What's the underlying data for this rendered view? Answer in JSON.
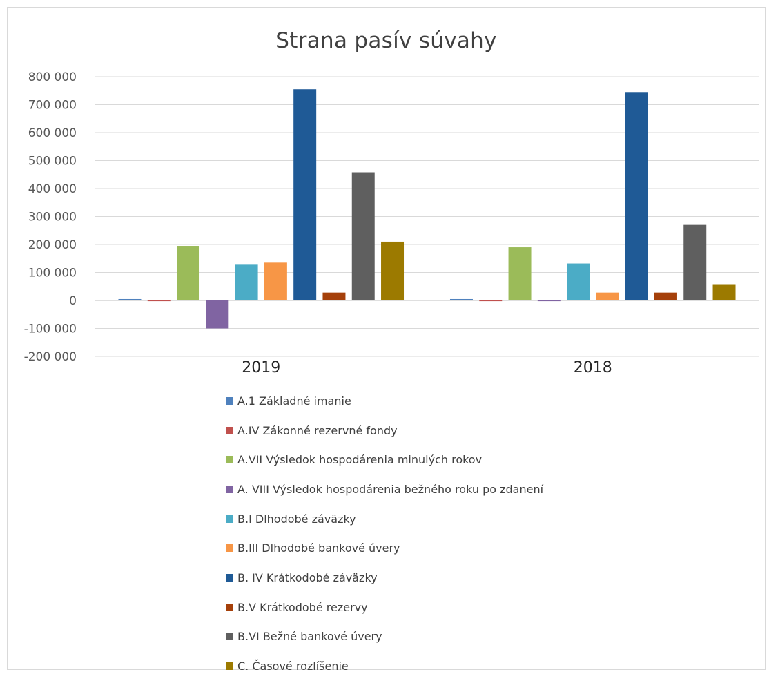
{
  "chart_data": {
    "type": "bar",
    "title": "Strana pasív súvahy",
    "categories": [
      "2019",
      "2018"
    ],
    "ylim": [
      -200000,
      800000
    ],
    "yticks": [
      800000,
      700000,
      600000,
      500000,
      400000,
      300000,
      200000,
      100000,
      0,
      -100000,
      -200000
    ],
    "ytick_labels": [
      "800 000",
      "700 000",
      "600 000",
      "500 000",
      "400 000",
      "300 000",
      "200 000",
      "100 000",
      "0",
      "-100 000",
      "-200 000"
    ],
    "grid": true,
    "legend_position": "bottom",
    "series": [
      {
        "name": "A.1 Základné imanie",
        "color": "#4f81bd",
        "values": [
          5000,
          5000
        ]
      },
      {
        "name": "A.IV Zákonné rezervné fondy",
        "color": "#c0504d",
        "values": [
          1000,
          1000
        ]
      },
      {
        "name": "A.VII Výsledok hospodárenia minulých rokov",
        "color": "#9bbb59",
        "values": [
          195000,
          190000
        ]
      },
      {
        "name": "A. VIII Výsledok hospodárenia bežného roku po zdanení",
        "color": "#8064a2",
        "values": [
          -100000,
          1000
        ]
      },
      {
        "name": "B.I Dlhodobé záväzky",
        "color": "#4bacc6",
        "values": [
          130000,
          132000
        ]
      },
      {
        "name": "B.III Dlhodobé bankové úvery",
        "color": "#f79646",
        "values": [
          135000,
          28000
        ]
      },
      {
        "name": "B. IV Krátkodobé záväzky",
        "color": "#1f5a96",
        "values": [
          755000,
          745000
        ]
      },
      {
        "name": "B.V Krátkodobé rezervy",
        "color": "#a5400a",
        "values": [
          28000,
          28000
        ]
      },
      {
        "name": "B.VI Bežné bankové úvery",
        "color": "#5f5f5f",
        "values": [
          458000,
          270000
        ]
      },
      {
        "name": "C. Časové rozlíšenie",
        "color": "#9c7a00",
        "values": [
          210000,
          58000
        ]
      }
    ]
  }
}
